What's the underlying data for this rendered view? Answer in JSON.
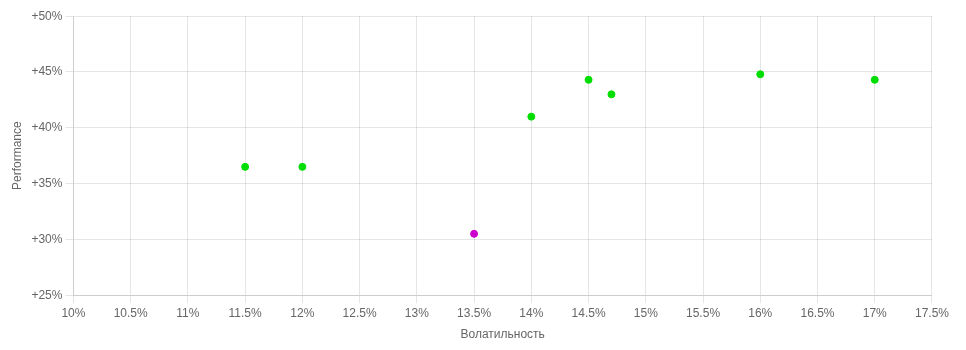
{
  "chart_data": {
    "type": "scatter",
    "xlabel": "Волатильность",
    "ylabel": "Performance",
    "xlim": [
      0.1,
      0.175
    ],
    "ylim": [
      0.25,
      0.5
    ],
    "xticks": [
      {
        "value": 0.1,
        "label": "10%"
      },
      {
        "value": 0.105,
        "label": "10.5%"
      },
      {
        "value": 0.11,
        "label": "11%"
      },
      {
        "value": 0.115,
        "label": "11.5%"
      },
      {
        "value": 0.12,
        "label": "12%"
      },
      {
        "value": 0.125,
        "label": "12.5%"
      },
      {
        "value": 0.13,
        "label": "13%"
      },
      {
        "value": 0.135,
        "label": "13.5%"
      },
      {
        "value": 0.14,
        "label": "14%"
      },
      {
        "value": 0.145,
        "label": "14.5%"
      },
      {
        "value": 0.15,
        "label": "15%"
      },
      {
        "value": 0.155,
        "label": "15.5%"
      },
      {
        "value": 0.16,
        "label": "16%"
      },
      {
        "value": 0.165,
        "label": "16.5%"
      },
      {
        "value": 0.17,
        "label": "17%"
      },
      {
        "value": 0.175,
        "label": "17.5%"
      }
    ],
    "yticks": [
      {
        "value": 0.25,
        "label": "+25%"
      },
      {
        "value": 0.3,
        "label": "+30%"
      },
      {
        "value": 0.35,
        "label": "+35%"
      },
      {
        "value": 0.4,
        "label": "+40%"
      },
      {
        "value": 0.45,
        "label": "+45%"
      },
      {
        "value": 0.5,
        "label": "+50%"
      }
    ],
    "series": [
      {
        "color": "#00dd00",
        "x": [
          0.115,
          0.12,
          0.14,
          0.145,
          0.147,
          0.16,
          0.17
        ],
        "values": [
          0.365,
          0.365,
          0.41,
          0.443,
          0.43,
          0.448,
          0.443
        ]
      },
      {
        "color": "#cc00cc",
        "x": [
          0.135
        ],
        "values": [
          0.305
        ]
      }
    ],
    "grid": true
  }
}
